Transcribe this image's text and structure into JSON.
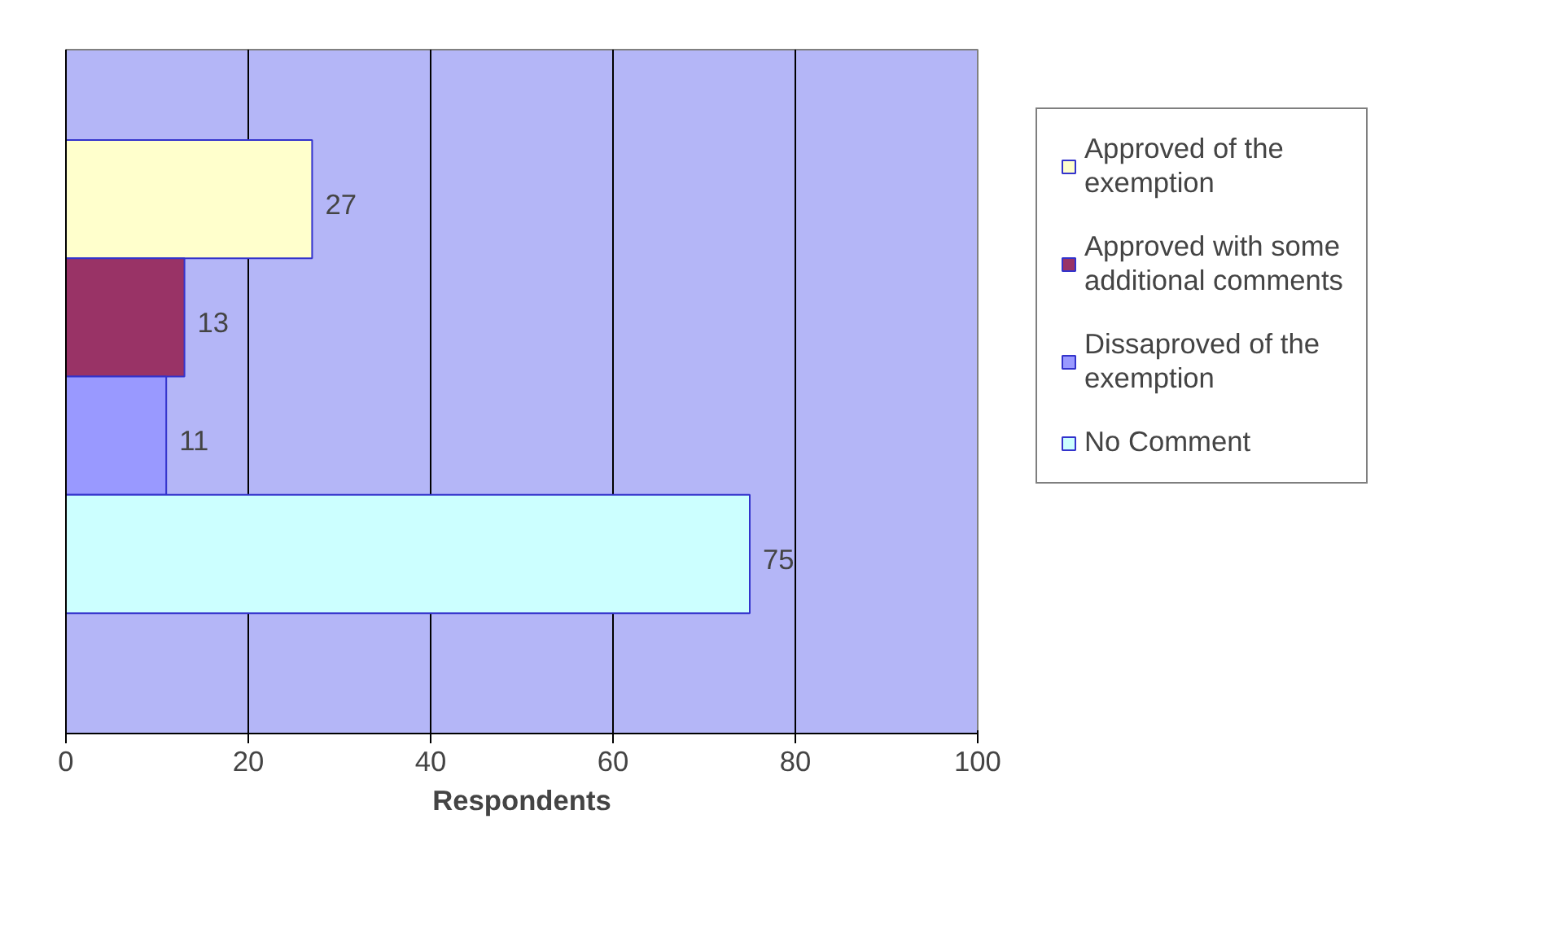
{
  "chart_data": {
    "type": "bar",
    "orientation": "horizontal",
    "xlabel": "Respondents",
    "categories": [
      null
    ],
    "series": [
      {
        "name": "Approved of the exemption",
        "color": "#ffffcc",
        "values": [
          27
        ]
      },
      {
        "name": "Approved with some additional comments",
        "color": "#993366",
        "values": [
          13
        ]
      },
      {
        "name": "Dissaproved of the exemption",
        "color": "#9999ff",
        "values": [
          11
        ]
      },
      {
        "name": "No Comment",
        "color": "#ccffff",
        "values": [
          75
        ]
      }
    ],
    "xlim": [
      0,
      100
    ],
    "xticks": [
      0,
      20,
      40,
      60,
      80,
      100
    ],
    "grid": "x",
    "legend": "right",
    "data_labels": true
  }
}
